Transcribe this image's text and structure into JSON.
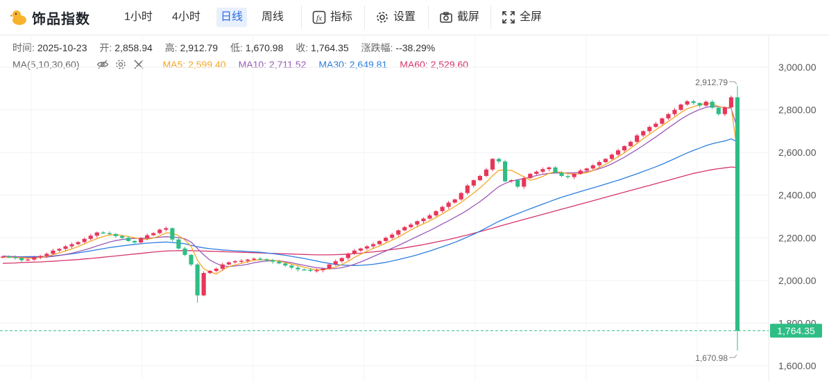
{
  "app": {
    "title": "饰品指数"
  },
  "toolbar": {
    "periods": [
      "1小时",
      "4小时",
      "日线",
      "周线"
    ],
    "active_period": "日线",
    "indicator_label": "指标",
    "settings_label": "设置",
    "screenshot_label": "截屏",
    "fullscreen_label": "全屏"
  },
  "info": {
    "time_label": "时间:",
    "time": "2025-10-23",
    "open_label": "开:",
    "open": "2,858.94",
    "high_label": "高:",
    "high": "2,912.79",
    "low_label": "低:",
    "low": "1,670.98",
    "close_label": "收:",
    "close": "1,764.35",
    "change_label": "涨跌幅:",
    "change": "--38.29%"
  },
  "ma": {
    "name": "MA(5,10,30,60)",
    "items": [
      {
        "label": "MA5: 2,599.40",
        "color": "#f5a623"
      },
      {
        "label": "MA10: 2,711.52",
        "color": "#9b59b6"
      },
      {
        "label": "MA30: 2,649.81",
        "color": "#2b7de1"
      },
      {
        "label": "MA60: 2,529.60",
        "color": "#d6336c"
      }
    ]
  },
  "chart_data": {
    "type": "candlestick",
    "y_ticks": [
      "3,000.00",
      "2,800.00",
      "2,600.00",
      "2,400.00",
      "2,200.00",
      "2,000.00",
      "1,800.00",
      "1,600.00"
    ],
    "ylim": [
      1550,
      3120
    ],
    "up_color": "#e8365a",
    "down_color": "#2ebd85",
    "last_price_label": "1,764.35",
    "last_price": 1764.35,
    "high_marker": {
      "label": "2,912.79",
      "value": 2912.79
    },
    "low_marker": {
      "label": "1,670.98",
      "value": 1670.98
    },
    "closes": [
      2112,
      2110,
      2105,
      2095,
      2098,
      2108,
      2115,
      2125,
      2140,
      2148,
      2160,
      2170,
      2180,
      2195,
      2210,
      2225,
      2222,
      2218,
      2208,
      2200,
      2185,
      2178,
      2198,
      2212,
      2222,
      2238,
      2245,
      2192,
      2150,
      2120,
      2075,
      1930,
      2035,
      2045,
      2055,
      2075,
      2085,
      2090,
      2092,
      2098,
      2102,
      2100,
      2095,
      2088,
      2080,
      2070,
      2060,
      2052,
      2050,
      2045,
      2048,
      2055,
      2075,
      2090,
      2105,
      2125,
      2140,
      2150,
      2160,
      2170,
      2185,
      2200,
      2215,
      2235,
      2250,
      2262,
      2278,
      2290,
      2305,
      2325,
      2345,
      2365,
      2380,
      2410,
      2445,
      2470,
      2490,
      2520,
      2570,
      2558,
      2465,
      2470,
      2440,
      2480,
      2500,
      2510,
      2522,
      2530,
      2505,
      2490,
      2485,
      2500,
      2515,
      2525,
      2540,
      2555,
      2570,
      2590,
      2610,
      2630,
      2650,
      2680,
      2700,
      2720,
      2735,
      2760,
      2780,
      2800,
      2825,
      2840,
      2832,
      2820,
      2838,
      2810,
      2780,
      2812,
      2858.94,
      1764.35
    ],
    "ma5": [
      2110,
      2109,
      2107,
      2106,
      2104,
      2105,
      2108,
      2113,
      2121,
      2129,
      2138,
      2148,
      2159,
      2171,
      2184,
      2196,
      2206,
      2213,
      2215,
      2211,
      2206,
      2200,
      2195,
      2193,
      2199,
      2209,
      2223,
      2222,
      2210,
      2190,
      2160,
      2095,
      2055,
      2040,
      2030,
      2049,
      2065,
      2073,
      2080,
      2088,
      2094,
      2097,
      2097,
      2095,
      2090,
      2084,
      2077,
      2070,
      2062,
      2055,
      2051,
      2050,
      2055,
      2063,
      2075,
      2090,
      2108,
      2123,
      2137,
      2150,
      2162,
      2175,
      2189,
      2203,
      2220,
      2237,
      2252,
      2266,
      2280,
      2295,
      2312,
      2330,
      2347,
      2366,
      2388,
      2410,
      2434,
      2460,
      2491,
      2517,
      2518,
      2516,
      2501,
      2486,
      2470,
      2477,
      2488,
      2502,
      2510,
      2507,
      2500,
      2499,
      2500,
      2505,
      2515,
      2530,
      2544,
      2562,
      2580,
      2599,
      2620,
      2642,
      2664,
      2686,
      2706,
      2726,
      2746,
      2766,
      2787,
      2805,
      2815,
      2823,
      2830,
      2828,
      2816,
      2808,
      2815,
      2599.4
    ],
    "ma10": [
      2115,
      2113,
      2112,
      2110,
      2109,
      2108,
      2108,
      2110,
      2113,
      2117,
      2122,
      2128,
      2135,
      2143,
      2152,
      2162,
      2171,
      2180,
      2187,
      2192,
      2195,
      2197,
      2198,
      2198,
      2200,
      2203,
      2205,
      2204,
      2201,
      2195,
      2180,
      2150,
      2120,
      2095,
      2080,
      2068,
      2065,
      2068,
      2071,
      2076,
      2083,
      2088,
      2091,
      2093,
      2092,
      2088,
      2083,
      2077,
      2071,
      2065,
      2060,
      2057,
      2055,
      2056,
      2060,
      2067,
      2076,
      2087,
      2099,
      2112,
      2125,
      2138,
      2151,
      2164,
      2178,
      2192,
      2206,
      2220,
      2234,
      2249,
      2265,
      2280,
      2296,
      2312,
      2330,
      2350,
      2370,
      2392,
      2417,
      2440,
      2455,
      2466,
      2472,
      2478,
      2484,
      2492,
      2498,
      2502,
      2504,
      2504,
      2504,
      2505,
      2507,
      2510,
      2515,
      2524,
      2534,
      2547,
      2562,
      2578,
      2596,
      2614,
      2633,
      2653,
      2673,
      2694,
      2715,
      2736,
      2756,
      2774,
      2789,
      2802,
      2812,
      2817,
      2815,
      2810,
      2808,
      2711.5
    ],
    "ma30": [
      2110,
      2111,
      2111,
      2111,
      2112,
      2112,
      2112,
      2113,
      2115,
      2118,
      2121,
      2125,
      2129,
      2134,
      2139,
      2144,
      2149,
      2154,
      2158,
      2162,
      2166,
      2169,
      2172,
      2175,
      2177,
      2179,
      2180,
      2178,
      2176,
      2172,
      2165,
      2158,
      2153,
      2149,
      2146,
      2143,
      2141,
      2139,
      2138,
      2136,
      2134,
      2132,
      2129,
      2126,
      2122,
      2118,
      2113,
      2108,
      2103,
      2097,
      2091,
      2085,
      2080,
      2075,
      2072,
      2071,
      2070,
      2071,
      2073,
      2076,
      2080,
      2085,
      2091,
      2098,
      2105,
      2112,
      2120,
      2129,
      2138,
      2148,
      2158,
      2168,
      2179,
      2191,
      2204,
      2217,
      2231,
      2246,
      2262,
      2277,
      2290,
      2302,
      2313,
      2325,
      2336,
      2347,
      2358,
      2369,
      2380,
      2390,
      2399,
      2408,
      2417,
      2426,
      2434,
      2443,
      2452,
      2461,
      2470,
      2480,
      2490,
      2500,
      2511,
      2522,
      2533,
      2545,
      2558,
      2571,
      2585,
      2598,
      2610,
      2621,
      2632,
      2641,
      2648,
      2654,
      2664,
      2649.8
    ],
    "ma60": [
      2080,
      2081,
      2082,
      2084,
      2085,
      2086,
      2087,
      2089,
      2090,
      2092,
      2094,
      2096,
      2098,
      2101,
      2103,
      2106,
      2109,
      2112,
      2115,
      2118,
      2121,
      2124,
      2127,
      2130,
      2133,
      2136,
      2138,
      2139,
      2140,
      2140,
      2140,
      2139,
      2138,
      2137,
      2136,
      2135,
      2134,
      2133,
      2132,
      2131,
      2130,
      2129,
      2128,
      2127,
      2126,
      2125,
      2124,
      2123,
      2122,
      2121,
      2120,
      2120,
      2120,
      2121,
      2122,
      2124,
      2126,
      2128,
      2131,
      2134,
      2137,
      2141,
      2145,
      2149,
      2153,
      2158,
      2163,
      2168,
      2174,
      2180,
      2186,
      2192,
      2199,
      2206,
      2213,
      2221,
      2229,
      2237,
      2245,
      2254,
      2262,
      2270,
      2278,
      2286,
      2294,
      2302,
      2310,
      2318,
      2326,
      2334,
      2342,
      2350,
      2358,
      2366,
      2374,
      2382,
      2390,
      2398,
      2406,
      2414,
      2422,
      2430,
      2438,
      2446,
      2454,
      2462,
      2470,
      2478,
      2486,
      2494,
      2502,
      2508,
      2514,
      2520,
      2524,
      2528,
      2532,
      2529.6
    ]
  }
}
